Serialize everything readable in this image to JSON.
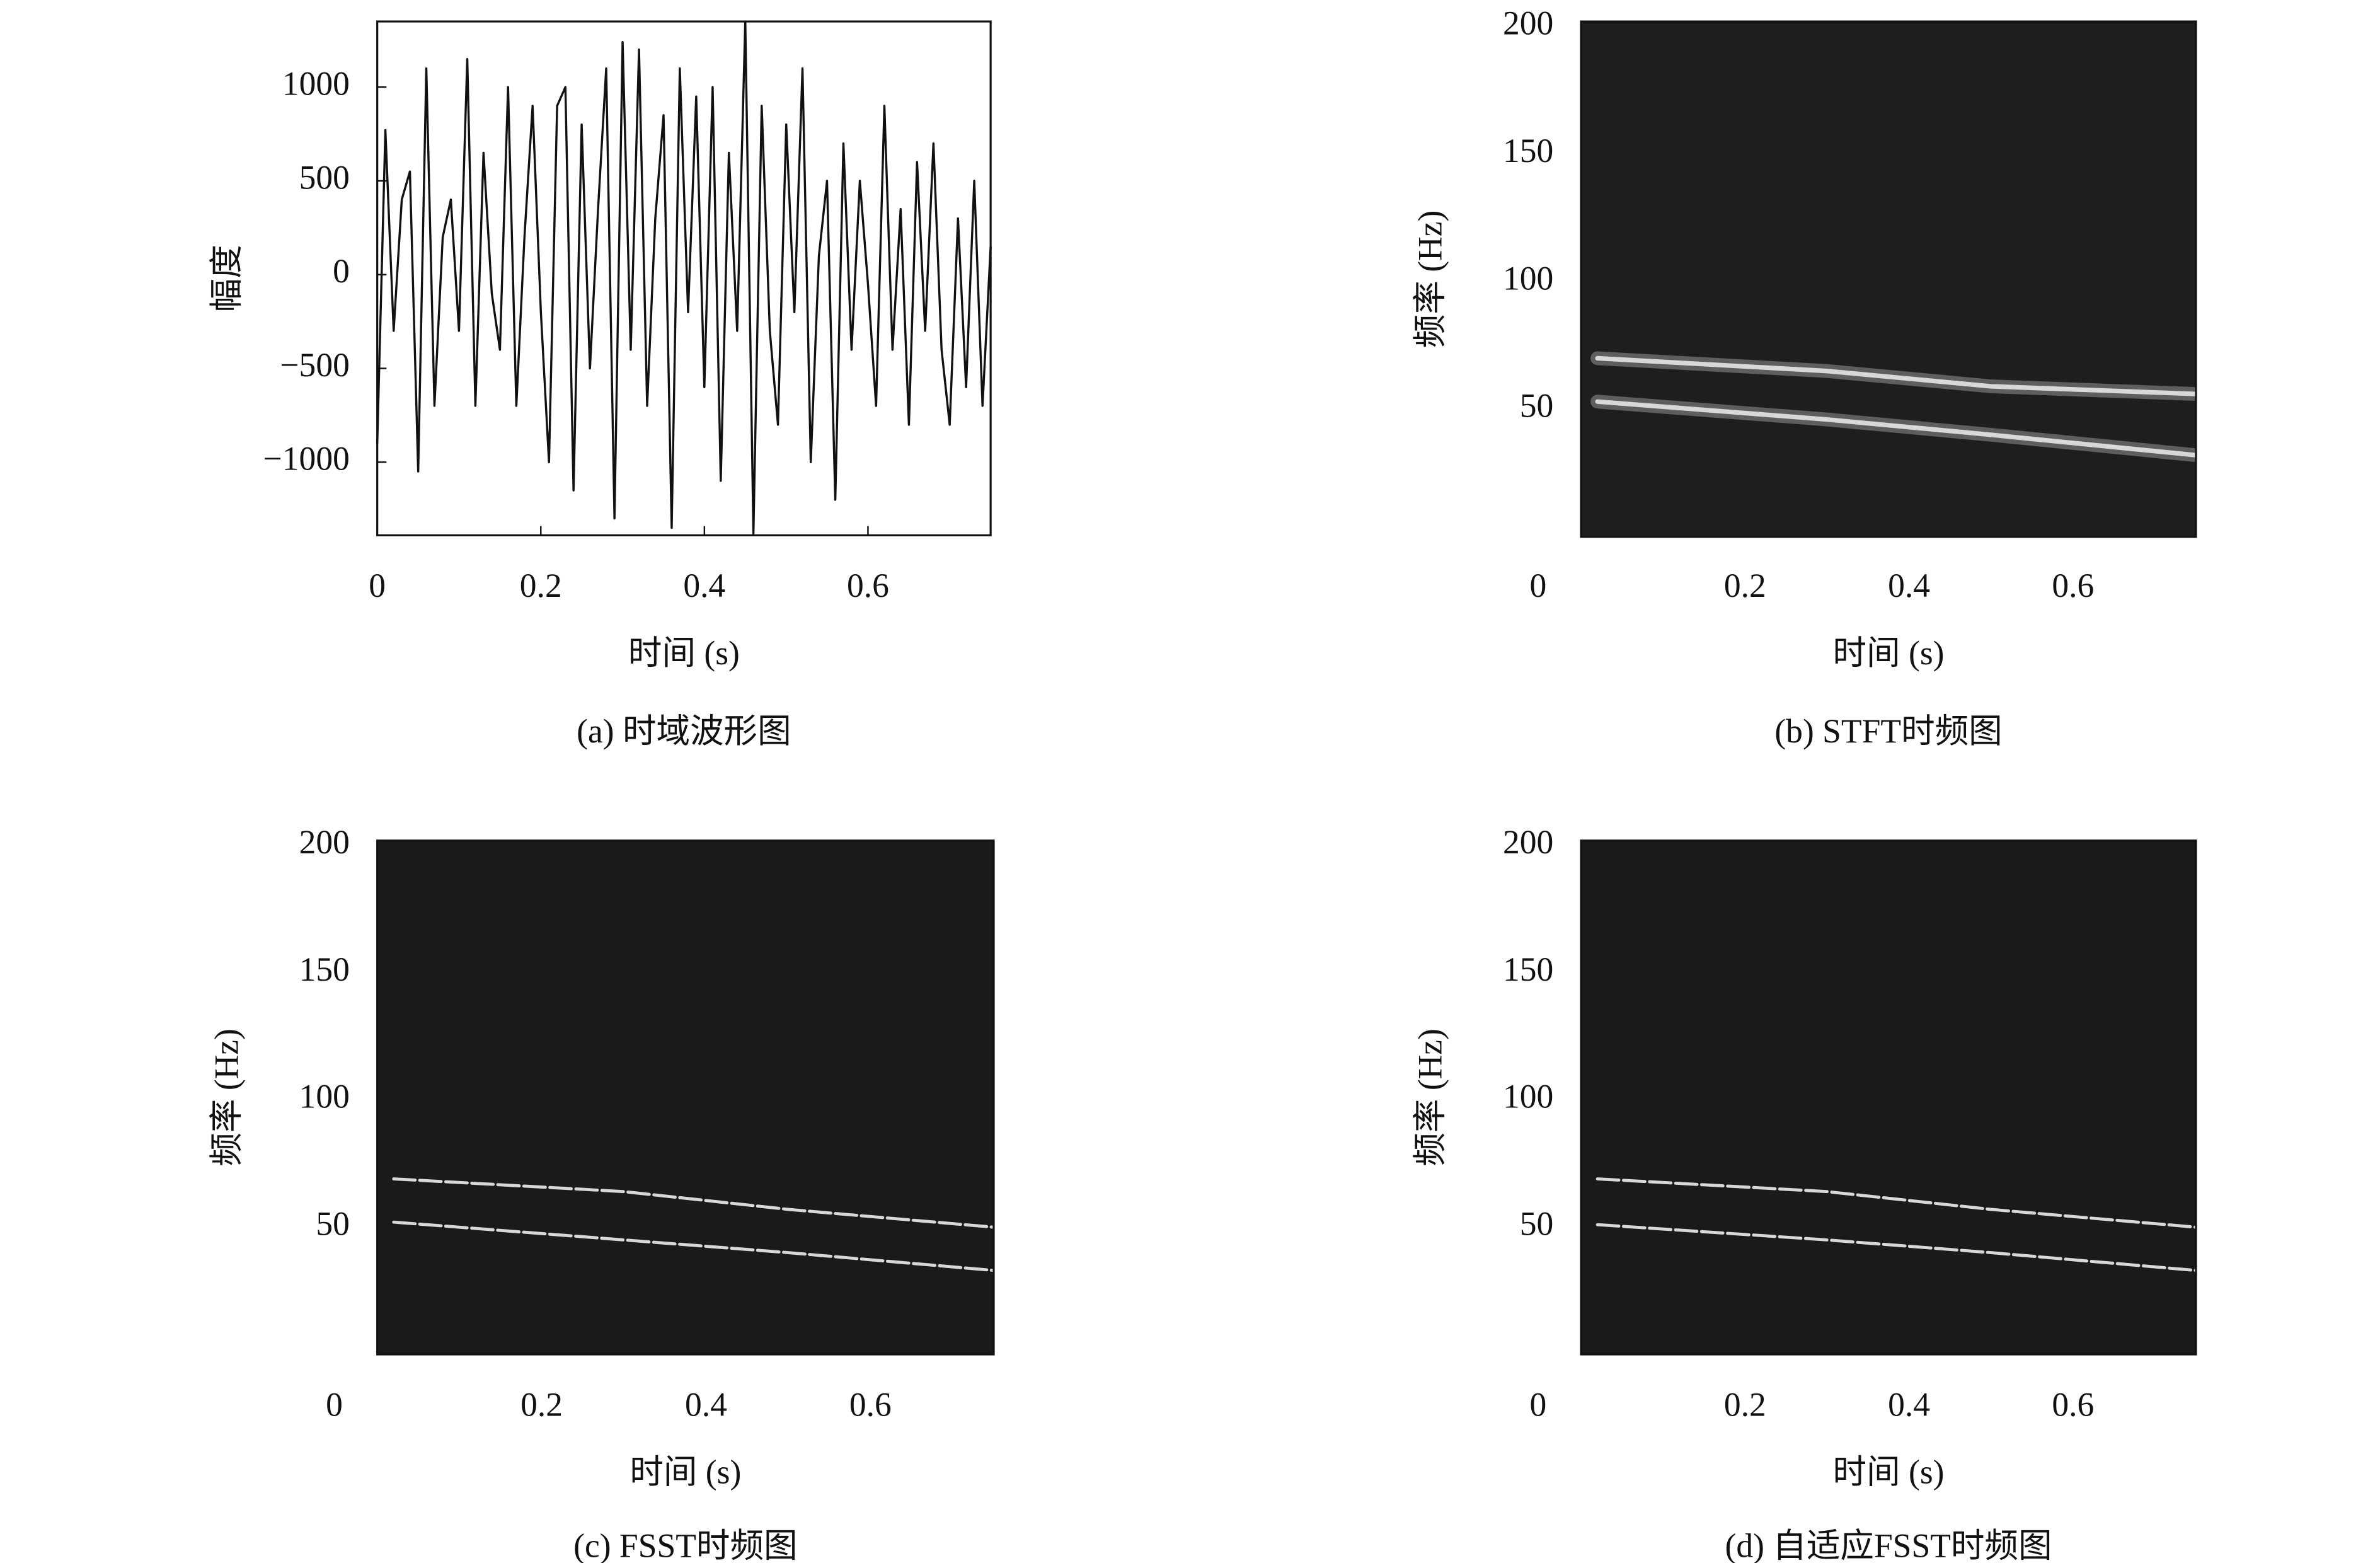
{
  "chart_data": [
    {
      "type": "line",
      "caption": "(a) 时域波形图",
      "xlabel": "时间 (s)",
      "ylabel": "幅度",
      "color": "#111111",
      "x": [
        0,
        0.01,
        0.02,
        0.03,
        0.04,
        0.05,
        0.06,
        0.07,
        0.08,
        0.09,
        0.1,
        0.11,
        0.12,
        0.13,
        0.14,
        0.15,
        0.16,
        0.17,
        0.18,
        0.19,
        0.2,
        0.21,
        0.22,
        0.23,
        0.24,
        0.25,
        0.26,
        0.27,
        0.28,
        0.29,
        0.3,
        0.31,
        0.32,
        0.33,
        0.34,
        0.35,
        0.36,
        0.37,
        0.38,
        0.39,
        0.4,
        0.41,
        0.42,
        0.43,
        0.44,
        0.45,
        0.46,
        0.47,
        0.48,
        0.49,
        0.5,
        0.51,
        0.52,
        0.53,
        0.54,
        0.55,
        0.56,
        0.57,
        0.58,
        0.59,
        0.6,
        0.61,
        0.62,
        0.63,
        0.64,
        0.65,
        0.66,
        0.67,
        0.68,
        0.69,
        0.7,
        0.71,
        0.72,
        0.73,
        0.74,
        0.75
      ],
      "values": [
        -900,
        770,
        -300,
        400,
        550,
        -1050,
        1100,
        -700,
        200,
        400,
        -300,
        1150,
        -700,
        650,
        -100,
        -400,
        1000,
        -700,
        200,
        900,
        -200,
        -1000,
        900,
        1000,
        -1150,
        800,
        -500,
        350,
        1100,
        -1300,
        1240,
        -400,
        1200,
        -700,
        300,
        850,
        -1350,
        1100,
        -200,
        950,
        -600,
        1000,
        -1100,
        650,
        -300,
        1350,
        -1380,
        900,
        -300,
        -800,
        800,
        -200,
        1100,
        -1000,
        100,
        500,
        -1200,
        700,
        -400,
        500,
        -50,
        -700,
        900,
        -400,
        350,
        -800,
        600,
        -300,
        700,
        -400,
        -800,
        300,
        -600,
        500,
        -700,
        150
      ],
      "xlim": [
        0,
        0.75
      ],
      "xticks": [
        0,
        0.2,
        0.4,
        0.6
      ],
      "ylim": [
        -1390,
        1350
      ],
      "yticks": [
        {
          "value": -1000,
          "label": "−1000"
        },
        {
          "value": -500,
          "label": "−500"
        },
        0,
        500,
        1000
      ]
    },
    {
      "type": "spectrogram",
      "caption": "(b) STFT时频图",
      "xlabel": "时间 (s)",
      "ylabel": "频率 (Hz)",
      "background": "#1e1e1e",
      "color": "#d8d8d8",
      "xlim": [
        0,
        0.75
      ],
      "xticks": [
        0,
        0.2,
        0.4,
        0.6
      ],
      "ylim": [
        0,
        202
      ],
      "yticks": [
        50,
        100,
        150,
        200
      ],
      "ridges": [
        {
          "x": [
            0.02,
            0.3,
            0.5,
            0.75
          ],
          "values": [
            70,
            65,
            59,
            56
          ]
        },
        {
          "x": [
            0.02,
            0.3,
            0.5,
            0.75
          ],
          "values": [
            53,
            46,
            40,
            32
          ]
        }
      ]
    },
    {
      "type": "spectrogram",
      "caption": "(c) FSST时频图",
      "xlabel": "时间 (s)",
      "ylabel": "频率 (Hz)",
      "background": "#1a1a1a",
      "color": "#d8d8d8",
      "xlim": [
        0,
        0.75
      ],
      "xticks": [
        0,
        0.2,
        0.4,
        0.6
      ],
      "ylim": [
        0,
        202
      ],
      "yticks": [
        50,
        100,
        150,
        200
      ],
      "ridges": [
        {
          "x": [
            0.02,
            0.3,
            0.5,
            0.75
          ],
          "values": [
            69,
            64,
            57,
            50
          ]
        },
        {
          "x": [
            0.02,
            0.3,
            0.5,
            0.75
          ],
          "values": [
            52,
            45,
            40,
            33
          ]
        }
      ]
    },
    {
      "type": "spectrogram",
      "caption": "(d) 自适应FSST时频图",
      "xlabel": "时间 (s)",
      "ylabel": "频率 (Hz)",
      "background": "#1a1a1a",
      "color": "#d8d8d8",
      "xlim": [
        0,
        0.75
      ],
      "xticks": [
        0,
        0.2,
        0.4,
        0.6
      ],
      "ylim": [
        0,
        202
      ],
      "yticks": [
        50,
        100,
        150,
        200
      ],
      "ridges": [
        {
          "x": [
            0.02,
            0.3,
            0.5,
            0.75
          ],
          "values": [
            69,
            64,
            57,
            50
          ]
        },
        {
          "x": [
            0.02,
            0.3,
            0.5,
            0.75
          ],
          "values": [
            51,
            45,
            40,
            33
          ]
        }
      ]
    }
  ]
}
